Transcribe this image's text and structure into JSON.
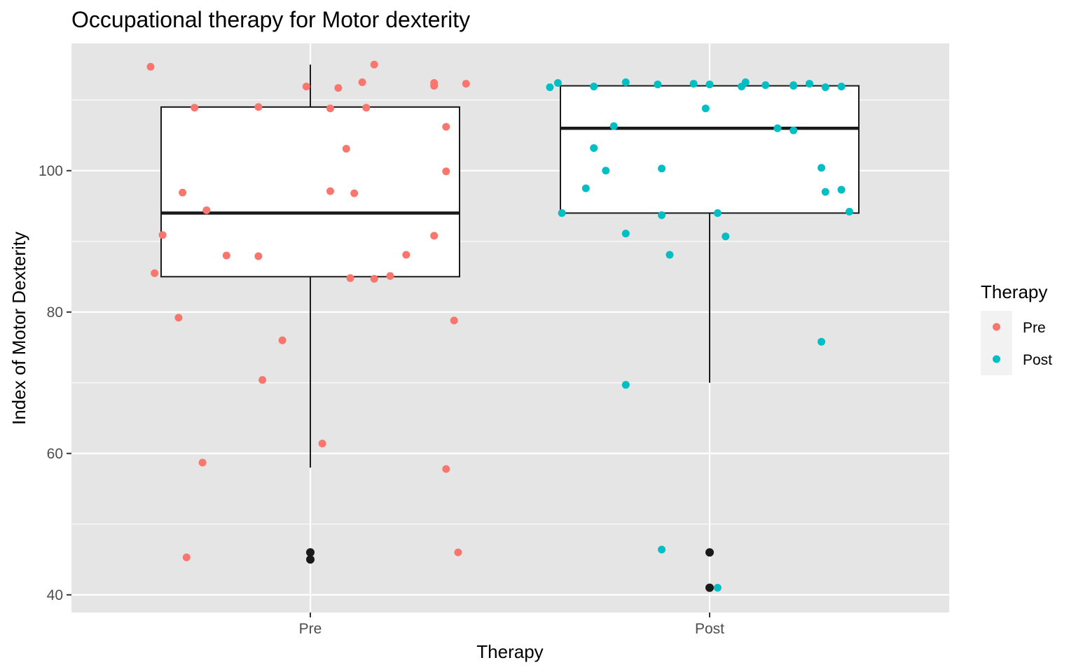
{
  "chart_data": {
    "type": "box",
    "title": "Occupational therapy for Motor dexterity",
    "xlabel": "Therapy",
    "ylabel": "Index of Motor Dexterity",
    "categories": [
      "Pre",
      "Post"
    ],
    "ylim": [
      37.5,
      118
    ],
    "yticks": [
      40,
      60,
      80,
      100
    ],
    "grid": true,
    "legend": {
      "title": "Therapy",
      "position": "right",
      "entries": [
        "Pre",
        "Post"
      ]
    },
    "colors": {
      "Pre": "#F8766D",
      "Post": "#00BFC4",
      "panel": "#E5E5E5",
      "outlier": "#1a1a1a"
    },
    "boxes": [
      {
        "category": "Pre",
        "lower_whisker": 58,
        "q1": 85,
        "median": 94,
        "q3": 109,
        "upper_whisker": 115,
        "outliers": [
          46,
          45
        ]
      },
      {
        "category": "Post",
        "lower_whisker": 70,
        "q1": 94,
        "median": 106,
        "q3": 112,
        "upper_whisker": 112,
        "outliers": [
          46,
          41
        ]
      }
    ],
    "series": [
      {
        "name": "Pre",
        "points": [
          [
            -0.4,
            114.7
          ],
          [
            -0.39,
            85.5
          ],
          [
            -0.37,
            90.9
          ],
          [
            -0.33,
            79.2
          ],
          [
            -0.32,
            96.9
          ],
          [
            -0.31,
            45.3
          ],
          [
            -0.29,
            108.9
          ],
          [
            -0.27,
            58.7
          ],
          [
            -0.26,
            94.4
          ],
          [
            -0.21,
            88.0
          ],
          [
            -0.13,
            87.9
          ],
          [
            -0.13,
            109.0
          ],
          [
            -0.12,
            70.4
          ],
          [
            -0.07,
            76.0
          ],
          [
            -0.01,
            111.9
          ],
          [
            0.03,
            61.4
          ],
          [
            0.05,
            108.8
          ],
          [
            0.05,
            97.1
          ],
          [
            0.07,
            111.7
          ],
          [
            0.09,
            103.1
          ],
          [
            0.1,
            84.8
          ],
          [
            0.11,
            96.8
          ],
          [
            0.13,
            112.5
          ],
          [
            0.14,
            108.9
          ],
          [
            0.16,
            84.7
          ],
          [
            0.16,
            115.0
          ],
          [
            0.2,
            85.1
          ],
          [
            0.24,
            88.1
          ],
          [
            0.31,
            90.8
          ],
          [
            0.31,
            112.0
          ],
          [
            0.31,
            112.4
          ],
          [
            0.34,
            57.8
          ],
          [
            0.34,
            99.9
          ],
          [
            0.34,
            106.2
          ],
          [
            0.36,
            78.8
          ],
          [
            0.37,
            46.0
          ],
          [
            0.39,
            112.3
          ]
        ]
      },
      {
        "name": "Post",
        "points": [
          [
            -0.4,
            111.8
          ],
          [
            -0.38,
            112.4
          ],
          [
            -0.37,
            94.0
          ],
          [
            -0.31,
            97.5
          ],
          [
            -0.29,
            111.9
          ],
          [
            -0.29,
            103.2
          ],
          [
            -0.26,
            100.0
          ],
          [
            -0.24,
            106.3
          ],
          [
            -0.21,
            69.7
          ],
          [
            -0.21,
            91.1
          ],
          [
            -0.21,
            112.5
          ],
          [
            -0.12,
            46.4
          ],
          [
            -0.13,
            112.2
          ],
          [
            -0.12,
            100.3
          ],
          [
            -0.12,
            93.7
          ],
          [
            -0.1,
            88.1
          ],
          [
            -0.04,
            112.3
          ],
          [
            -0.01,
            108.8
          ],
          [
            0.0,
            112.2
          ],
          [
            0.02,
            41.0
          ],
          [
            0.02,
            94.0
          ],
          [
            0.04,
            90.7
          ],
          [
            0.08,
            111.9
          ],
          [
            0.09,
            112.5
          ],
          [
            0.14,
            112.1
          ],
          [
            0.17,
            106.0
          ],
          [
            0.21,
            105.7
          ],
          [
            0.21,
            112.0
          ],
          [
            0.21,
            112.1
          ],
          [
            0.25,
            112.3
          ],
          [
            0.28,
            75.8
          ],
          [
            0.28,
            100.4
          ],
          [
            0.29,
            97.0
          ],
          [
            0.29,
            111.8
          ],
          [
            0.33,
            111.9
          ],
          [
            0.33,
            97.3
          ],
          [
            0.35,
            94.2
          ]
        ]
      }
    ]
  }
}
